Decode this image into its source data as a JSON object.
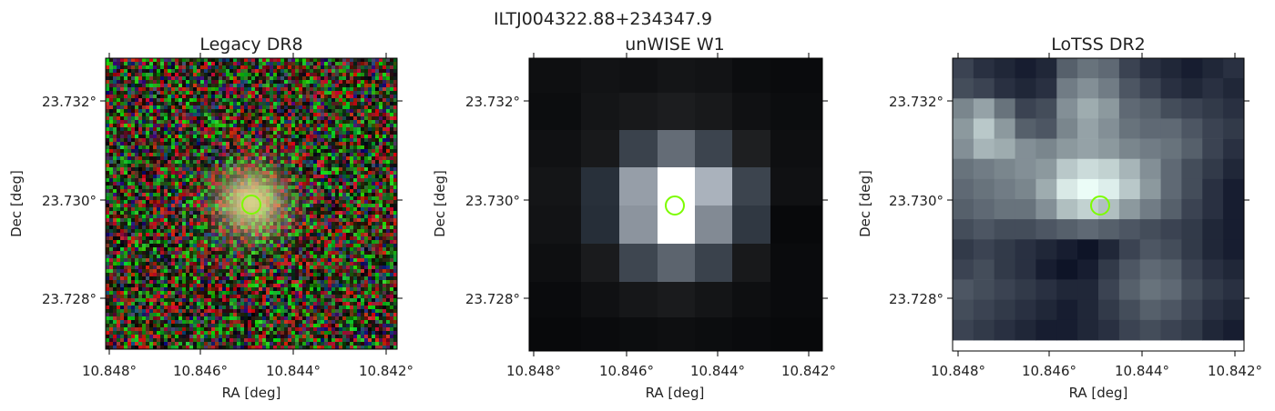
{
  "figure": {
    "title": "ILTJ004322.88+234347.9"
  },
  "panels": [
    {
      "id": "legacy",
      "title": "Legacy DR8",
      "xlabel": "RA [deg]",
      "ylabel": "Dec [deg]",
      "xticks": [
        "10.848°",
        "10.846°",
        "10.844°",
        "10.842°"
      ],
      "yticks": [
        "23.732°",
        "23.730°",
        "23.728°"
      ],
      "marker_color": "#7cfc00",
      "image_type": "optical-rgb-noise"
    },
    {
      "id": "unwise",
      "title": "unWISE W1",
      "xlabel": "RA [deg]",
      "ylabel": "Dec [deg]",
      "xticks": [
        "10.848°",
        "10.846°",
        "10.844°",
        "10.842°"
      ],
      "yticks": [
        "23.732°",
        "23.730°",
        "23.728°"
      ],
      "marker_color": "#7cfc00",
      "image_type": "infrared-grayscale"
    },
    {
      "id": "lotss",
      "title": "LoTSS DR2",
      "xlabel": "RA [deg]",
      "ylabel": "Dec [deg]",
      "xticks": [
        "10.848°",
        "10.846°",
        "10.844°",
        "10.842°"
      ],
      "yticks": [
        "23.732°",
        "23.730°",
        "23.728°"
      ],
      "marker_color": "#7cfc00",
      "image_type": "radio-bone"
    }
  ]
}
